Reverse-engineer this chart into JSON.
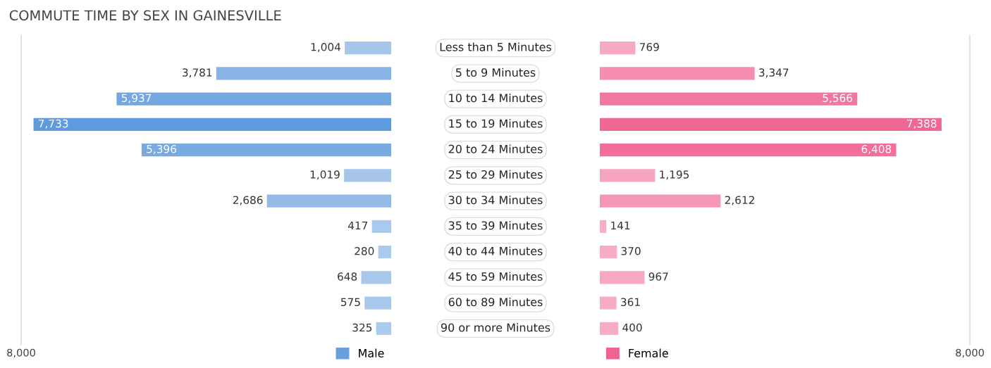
{
  "chart_data": [
    {
      "type": "bar",
      "orientation": "horizontal",
      "title": "COMMUTE TIME BY SEX IN GAINESVILLE",
      "categories": [
        "Less than 5 Minutes",
        "5 to 9 Minutes",
        "10 to 14 Minutes",
        "15 to 19 Minutes",
        "20 to 24 Minutes",
        "25 to 29 Minutes",
        "30 to 34 Minutes",
        "35 to 39 Minutes",
        "40 to 44 Minutes",
        "45 to 59 Minutes",
        "60 to 89 Minutes",
        "90 or more Minutes"
      ],
      "series": [
        {
          "name": "Male",
          "color": "#6a9fdc",
          "values": [
            1004,
            3781,
            5937,
            7733,
            5396,
            1019,
            2686,
            417,
            280,
            648,
            575,
            325
          ],
          "value_labels": [
            "1,004",
            "3,781",
            "5,937",
            "7,733",
            "5,396",
            "1,019",
            "2,686",
            "417",
            "280",
            "648",
            "575",
            "325"
          ],
          "colors": [
            "#a5c6ea",
            "#88b3e4",
            "#74a6e0",
            "#5f9ade",
            "#78a9e1",
            "#a5c6ea",
            "#93bae6",
            "#aacaec",
            "#abcbec",
            "#a8c8eb",
            "#a8c8eb",
            "#abcbec"
          ]
        }
      ],
      "xlim": [
        8000,
        0
      ],
      "xticks": [
        {
          "value": 8000,
          "label": "8,000"
        }
      ],
      "legend": "bottom right",
      "grid": false
    },
    {
      "type": "bar",
      "orientation": "horizontal",
      "categories": [
        null,
        null,
        null,
        null,
        null,
        null,
        null,
        null,
        null,
        null,
        null,
        null
      ],
      "series": [
        {
          "name": "Female",
          "color": "#f0628f",
          "values": [
            769,
            3347,
            5566,
            7388,
            6408,
            1195,
            2612,
            141,
            370,
            967,
            361,
            400
          ],
          "value_labels": [
            "769",
            "3,347",
            "5,566",
            "7,388",
            "6,408",
            "1,195",
            "2,612",
            "141",
            "370",
            "967",
            "361",
            "400"
          ],
          "colors": [
            "#f6a9c2",
            "#f48dae",
            "#f2779f",
            "#f06792",
            "#f16f98",
            "#f6a5bf",
            "#f596b4",
            "#f7adc5",
            "#f7abc4",
            "#f6a7c1",
            "#f7abc4",
            "#f7abc4"
          ]
        }
      ],
      "xlim": [
        0,
        8000
      ],
      "xticks": [
        {
          "value": 8000,
          "label": "8,000"
        }
      ],
      "legend": "bottom left",
      "grid": false
    }
  ]
}
